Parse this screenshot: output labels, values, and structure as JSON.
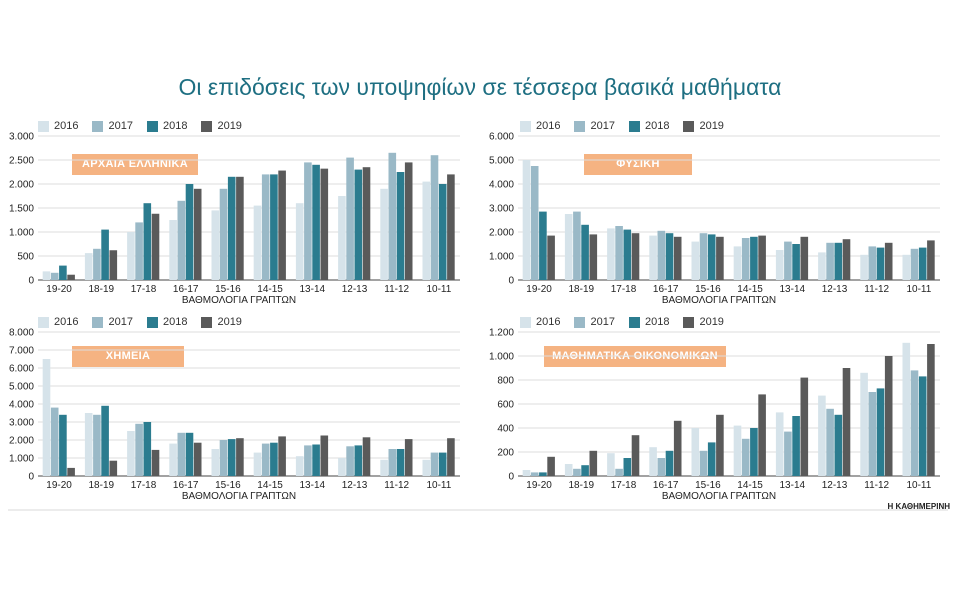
{
  "title": "Οι επιδόσεις των υποψηφίων σε τέσσερα βασικά μαθήματα",
  "credit": "Η ΚΑΘΗΜΕΡΙΝΗ",
  "colors": {
    "2016": "#d6e3ea",
    "2017": "#9ab9c7",
    "2018": "#2b7c8f",
    "2019": "#5a5a5a",
    "tag": "#f5b382"
  },
  "chart_data": [
    {
      "type": "bar",
      "title": "ΑΡΧΑΙΑ ΕΛΛΗΝΙΚΑ",
      "xlabel": "ΒΑΘΜΟΛΟΓΙΑ ΓΡΑΠΤΩΝ",
      "ylabel": "",
      "ylim": [
        0,
        3000
      ],
      "yticks": [
        0,
        500,
        1000,
        1500,
        2000,
        2500,
        3000
      ],
      "ytick_labels": [
        "0",
        "500",
        "1.000",
        "1.500",
        "2.000",
        "2.500",
        "3.000"
      ],
      "categories": [
        "19-20",
        "18-19",
        "17-18",
        "16-17",
        "15-16",
        "14-15",
        "13-14",
        "12-13",
        "11-12",
        "10-11"
      ],
      "series": [
        {
          "name": "2016",
          "values": [
            180,
            560,
            1000,
            1250,
            1450,
            1550,
            1600,
            1750,
            1900,
            2050
          ]
        },
        {
          "name": "2017",
          "values": [
            150,
            650,
            1200,
            1650,
            1900,
            2200,
            2450,
            2550,
            2650,
            2600
          ]
        },
        {
          "name": "2018",
          "values": [
            300,
            1050,
            1600,
            2000,
            2150,
            2200,
            2400,
            2300,
            2250,
            2000
          ]
        },
        {
          "name": "2019",
          "values": [
            110,
            620,
            1380,
            1900,
            2150,
            2280,
            2320,
            2350,
            2450,
            2200
          ]
        }
      ]
    },
    {
      "type": "bar",
      "title": "ΦΥΣΙΚΗ",
      "xlabel": "ΒΑΘΜΟΛΟΓΙΑ ΓΡΑΠΤΩΝ",
      "ylabel": "",
      "ylim": [
        0,
        6000
      ],
      "yticks": [
        0,
        1000,
        2000,
        3000,
        4000,
        5000,
        6000
      ],
      "ytick_labels": [
        "0",
        "1.000",
        "2.000",
        "3.000",
        "4.000",
        "5.000",
        "6.000"
      ],
      "categories": [
        "19-20",
        "18-19",
        "17-18",
        "16-17",
        "15-16",
        "14-15",
        "13-14",
        "12-13",
        "11-12",
        "10-11"
      ],
      "series": [
        {
          "name": "2016",
          "values": [
            5000,
            2750,
            2150,
            1850,
            1600,
            1400,
            1250,
            1150,
            1050,
            1050
          ]
        },
        {
          "name": "2017",
          "values": [
            4750,
            2850,
            2250,
            2050,
            1950,
            1750,
            1600,
            1550,
            1400,
            1300
          ]
        },
        {
          "name": "2018",
          "values": [
            2850,
            2300,
            2100,
            1950,
            1900,
            1800,
            1500,
            1550,
            1350,
            1350
          ]
        },
        {
          "name": "2019",
          "values": [
            1850,
            1900,
            1950,
            1800,
            1800,
            1850,
            1800,
            1700,
            1550,
            1650
          ]
        }
      ]
    },
    {
      "type": "bar",
      "title": "ΧΗΜΕΙΑ",
      "xlabel": "ΒΑΘΜΟΛΟΓΙΑ ΓΡΑΠΤΩΝ",
      "ylabel": "",
      "ylim": [
        0,
        8000
      ],
      "yticks": [
        0,
        1000,
        2000,
        3000,
        4000,
        5000,
        6000,
        7000,
        8000
      ],
      "ytick_labels": [
        "0",
        "1.000",
        "2.000",
        "3.000",
        "4.000",
        "5.000",
        "6.000",
        "7.000",
        "8.000"
      ],
      "categories": [
        "19-20",
        "18-19",
        "17-18",
        "16-17",
        "15-16",
        "14-15",
        "13-14",
        "12-13",
        "11-12",
        "10-11"
      ],
      "series": [
        {
          "name": "2016",
          "values": [
            6500,
            3500,
            2500,
            1800,
            1500,
            1300,
            1100,
            1000,
            900,
            900
          ]
        },
        {
          "name": "2017",
          "values": [
            3800,
            3400,
            2900,
            2400,
            2000,
            1800,
            1700,
            1650,
            1500,
            1300
          ]
        },
        {
          "name": "2018",
          "values": [
            3400,
            3900,
            3000,
            2400,
            2050,
            1850,
            1750,
            1700,
            1500,
            1300
          ]
        },
        {
          "name": "2019",
          "values": [
            450,
            850,
            1450,
            1850,
            2100,
            2200,
            2250,
            2150,
            2050,
            2100
          ]
        }
      ]
    },
    {
      "type": "bar",
      "title": "ΜΑΘΗΜΑΤΙΚΑ ΟΙΚΟΝΟΜΙΚΩΝ",
      "xlabel": "ΒΑΘΜΟΛΟΓΙΑ ΓΡΑΠΤΩΝ",
      "ylabel": "",
      "ylim": [
        0,
        1200
      ],
      "yticks": [
        0,
        200,
        400,
        600,
        800,
        1000,
        1200
      ],
      "ytick_labels": [
        "0",
        "200",
        "400",
        "600",
        "800",
        "1.000",
        "1.200"
      ],
      "categories": [
        "19-20",
        "18-19",
        "17-18",
        "16-17",
        "15-16",
        "14-15",
        "13-14",
        "12-13",
        "11-12",
        "10-11"
      ],
      "series": [
        {
          "name": "2016",
          "values": [
            50,
            100,
            190,
            240,
            400,
            420,
            530,
            670,
            860,
            1110
          ]
        },
        {
          "name": "2017",
          "values": [
            30,
            60,
            60,
            150,
            210,
            310,
            370,
            560,
            700,
            880
          ]
        },
        {
          "name": "2018",
          "values": [
            30,
            90,
            150,
            210,
            280,
            400,
            500,
            510,
            730,
            830
          ]
        },
        {
          "name": "2019",
          "values": [
            160,
            210,
            340,
            460,
            510,
            680,
            820,
            900,
            1000,
            1100
          ]
        }
      ]
    }
  ]
}
